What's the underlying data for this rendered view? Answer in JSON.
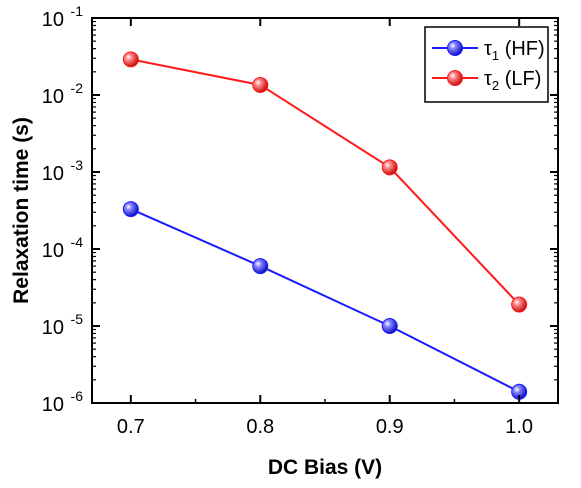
{
  "chart_data": {
    "type": "line",
    "xlabel": "DC Bias (V)",
    "ylabel": "Relaxation time (s)",
    "xlim": [
      0.67,
      1.03
    ],
    "ylim": [
      1e-06,
      0.1
    ],
    "yscale": "log",
    "x_ticks": [
      "0.7",
      "0.8",
      "0.9",
      "1.0"
    ],
    "x_tick_values": [
      0.7,
      0.8,
      0.9,
      1.0
    ],
    "y_tick_exponents": [
      "-6",
      "-5",
      "-4",
      "-3",
      "-2",
      "-1"
    ],
    "y_tick_base": "10",
    "legend_position": "top-right",
    "grid": false,
    "series": [
      {
        "name": "τ1 (HF)",
        "legend_symbol": "τ",
        "legend_sub": "1",
        "legend_suffix": " (HF)",
        "color": "#1a1aff",
        "x": [
          0.7,
          0.8,
          0.9,
          1.0
        ],
        "values": [
          0.00033,
          6e-05,
          1e-05,
          1.4e-06
        ]
      },
      {
        "name": "τ2 (LF)",
        "legend_symbol": "τ",
        "legend_sub": "2",
        "legend_suffix": " (LF)",
        "color": "#ff1a1a",
        "x": [
          0.7,
          0.8,
          0.9,
          1.0
        ],
        "values": [
          0.029,
          0.0135,
          0.00115,
          1.9e-05
        ]
      }
    ]
  }
}
